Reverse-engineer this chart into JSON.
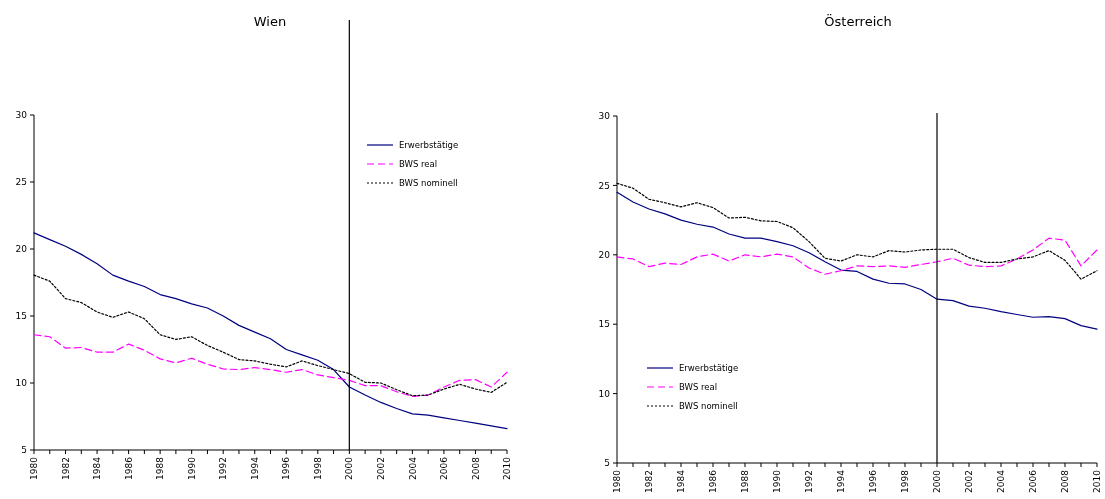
{
  "chart_data": [
    {
      "type": "line",
      "title": "Wien",
      "x": [
        1980,
        1981,
        1982,
        1983,
        1984,
        1985,
        1986,
        1987,
        1988,
        1989,
        1990,
        1991,
        1992,
        1993,
        1994,
        1995,
        1996,
        1997,
        1998,
        1999,
        2000,
        2001,
        2002,
        2003,
        2004,
        2005,
        2006,
        2007,
        2008,
        2009,
        2010
      ],
      "series": [
        {
          "name": "Erwerbstätige",
          "color": "#000080",
          "line_style": "solid",
          "values": [
            21.2,
            20.7,
            20.2,
            19.6,
            18.9,
            18.05,
            17.6,
            17.2,
            16.6,
            16.3,
            15.9,
            15.6,
            15.0,
            14.3,
            13.8,
            13.3,
            12.5,
            12.1,
            11.7,
            11.0,
            9.7,
            9.1,
            8.55,
            8.1,
            7.7,
            7.6,
            7.4,
            7.2,
            7.0,
            6.8,
            6.6
          ]
        },
        {
          "name": "BWS real",
          "color": "#ff00ff",
          "line_style": "dashed",
          "values": [
            13.6,
            13.45,
            12.6,
            12.65,
            12.3,
            12.3,
            12.9,
            12.45,
            11.8,
            11.5,
            11.85,
            11.4,
            11.05,
            11.0,
            11.15,
            11.0,
            10.8,
            11.0,
            10.6,
            10.4,
            10.2,
            9.8,
            9.8,
            9.35,
            9.0,
            9.1,
            9.7,
            10.2,
            10.25,
            9.7,
            10.8
          ]
        },
        {
          "name": "BWS nominell",
          "color": "#000000",
          "line_style": "dotted",
          "values": [
            18.05,
            17.6,
            16.3,
            16.0,
            15.3,
            14.9,
            15.3,
            14.8,
            13.6,
            13.25,
            13.45,
            12.8,
            12.3,
            11.75,
            11.65,
            11.4,
            11.2,
            11.65,
            11.3,
            11.0,
            10.7,
            10.05,
            10.0,
            9.5,
            9.05,
            9.1,
            9.55,
            9.9,
            9.55,
            9.3,
            10.05
          ]
        }
      ],
      "xlim": [
        1980,
        2010
      ],
      "xticks": [
        1980,
        {
          "value": 1981,
          "label": null
        },
        1982,
        {
          "value": 1983,
          "label": null
        },
        1984,
        {
          "value": 1985,
          "label": null
        },
        1986,
        {
          "value": 1987,
          "label": null
        },
        1988,
        {
          "value": 1989,
          "label": null
        },
        1990,
        {
          "value": 1991,
          "label": null
        },
        1992,
        {
          "value": 1993,
          "label": null
        },
        1994,
        {
          "value": 1995,
          "label": null
        },
        1996,
        {
          "value": 1997,
          "label": null
        },
        1998,
        {
          "value": 1999,
          "label": null
        },
        2000,
        {
          "value": 2001,
          "label": null
        },
        2002,
        {
          "value": 2003,
          "label": null
        },
        2004,
        {
          "value": 2005,
          "label": null
        },
        2006,
        {
          "value": 2007,
          "label": null
        },
        2008,
        {
          "value": 2009,
          "label": null
        },
        2010
      ],
      "ylim": [
        5,
        30
      ],
      "yticks": [
        5,
        10,
        15,
        20,
        25,
        30
      ],
      "ref_lines": [
        {
          "axis": "x",
          "value": 2000,
          "color": "#000000"
        }
      ],
      "legend": "top right",
      "grid": false,
      "marker": "none"
    },
    {
      "type": "line",
      "title": "Österreich",
      "x": [
        1980,
        1981,
        1982,
        1983,
        1984,
        1985,
        1986,
        1987,
        1988,
        1989,
        1990,
        1991,
        1992,
        1993,
        1994,
        1995,
        1996,
        1997,
        1998,
        1999,
        2000,
        2001,
        2002,
        2003,
        2004,
        2005,
        2006,
        2007,
        2008,
        2009,
        2010
      ],
      "series": [
        {
          "name": "Erwerbstätige",
          "color": "#000080",
          "line_style": "solid",
          "values": [
            24.5,
            23.8,
            23.3,
            22.95,
            22.5,
            22.2,
            22.0,
            21.5,
            21.2,
            21.2,
            20.95,
            20.65,
            20.15,
            19.5,
            18.9,
            18.8,
            18.25,
            17.95,
            17.9,
            17.5,
            16.8,
            16.7,
            16.3,
            16.15,
            15.9,
            15.7,
            15.5,
            15.55,
            15.4,
            14.9,
            14.65
          ]
        },
        {
          "name": "BWS real",
          "color": "#ff00ff",
          "line_style": "dashed",
          "values": [
            19.85,
            19.7,
            19.15,
            19.4,
            19.3,
            19.85,
            20.05,
            19.55,
            20.0,
            19.85,
            20.05,
            19.85,
            19.05,
            18.6,
            18.85,
            19.2,
            19.15,
            19.2,
            19.1,
            19.3,
            19.5,
            19.75,
            19.25,
            19.15,
            19.2,
            19.7,
            20.35,
            21.2,
            21.05,
            19.2,
            20.35
          ]
        },
        {
          "name": "BWS nominell",
          "color": "#000000",
          "line_style": "dotted",
          "values": [
            25.15,
            24.8,
            24.0,
            23.75,
            23.45,
            23.75,
            23.4,
            22.65,
            22.7,
            22.45,
            22.4,
            21.95,
            20.95,
            19.75,
            19.55,
            20.0,
            19.85,
            20.3,
            20.2,
            20.35,
            20.4,
            20.4,
            19.8,
            19.45,
            19.45,
            19.7,
            19.85,
            20.3,
            19.6,
            18.25,
            18.85
          ]
        }
      ],
      "xlim": [
        1980,
        2010
      ],
      "xticks": [
        1980,
        {
          "value": 1981,
          "label": null
        },
        1982,
        {
          "value": 1983,
          "label": null
        },
        1984,
        {
          "value": 1985,
          "label": null
        },
        1986,
        {
          "value": 1987,
          "label": null
        },
        1988,
        {
          "value": 1989,
          "label": null
        },
        1990,
        {
          "value": 1991,
          "label": null
        },
        1992,
        {
          "value": 1993,
          "label": null
        },
        1994,
        {
          "value": 1995,
          "label": null
        },
        1996,
        {
          "value": 1997,
          "label": null
        },
        1998,
        {
          "value": 1999,
          "label": null
        },
        2000,
        {
          "value": 2001,
          "label": null
        },
        2002,
        {
          "value": 2003,
          "label": null
        },
        2004,
        {
          "value": 2005,
          "label": null
        },
        2006,
        {
          "value": 2007,
          "label": null
        },
        2008,
        {
          "value": 2009,
          "label": null
        },
        2010
      ],
      "ylim": [
        5,
        30
      ],
      "yticks": [
        5,
        10,
        15,
        20,
        25,
        30
      ],
      "ref_lines": [
        {
          "axis": "x",
          "value": 2000,
          "color": "#000000"
        }
      ],
      "legend": "bottom left",
      "grid": false,
      "marker": "none"
    }
  ]
}
